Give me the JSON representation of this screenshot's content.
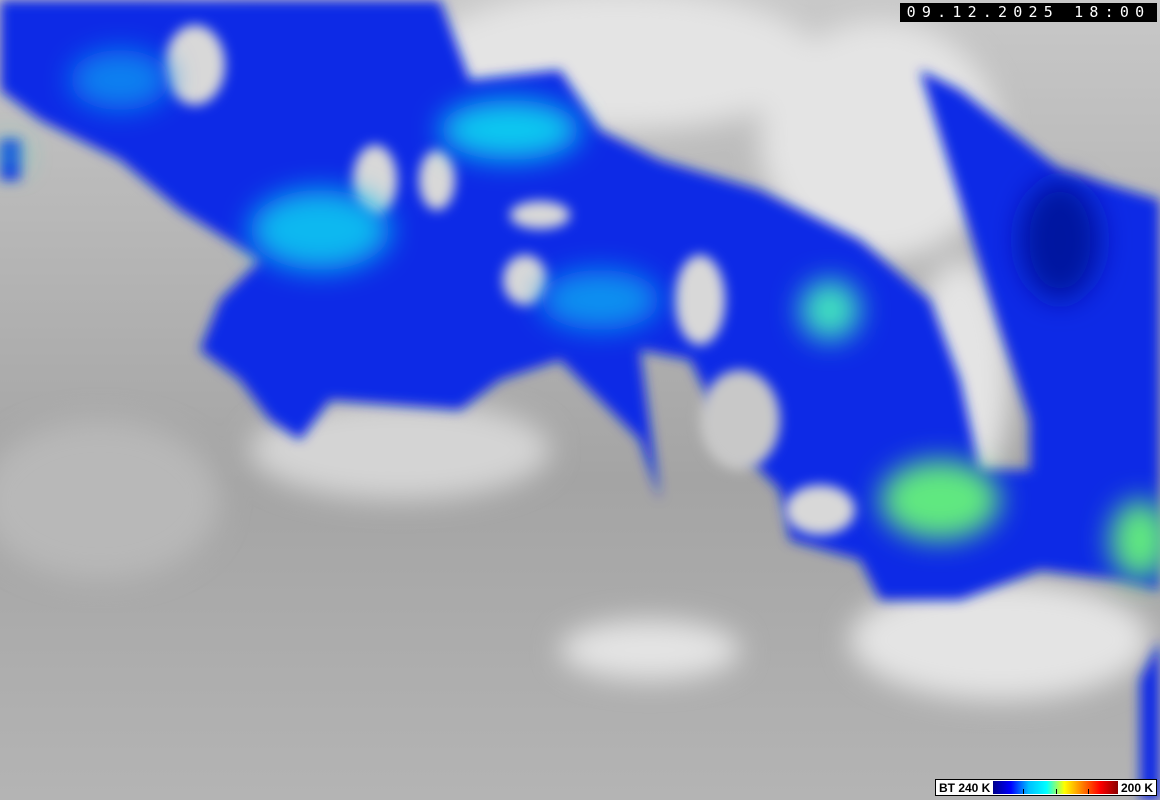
{
  "timestamp": "09.12.2025 18:00",
  "legend": {
    "low_label": "BT 240 K",
    "high_label": "200 K",
    "colors": [
      "#00008b",
      "#0000ff",
      "#00bfff",
      "#00ffff",
      "#ffff00",
      "#ff7f00",
      "#ff0000",
      "#8b0000"
    ]
  },
  "imagery": {
    "cloud_colors": {
      "background_gray": "#a8a8a8",
      "bright_cloud": "#e6e6e6",
      "cold_top_blue": "#0a2be6",
      "coldest_cyan": "#20e0f0"
    }
  }
}
